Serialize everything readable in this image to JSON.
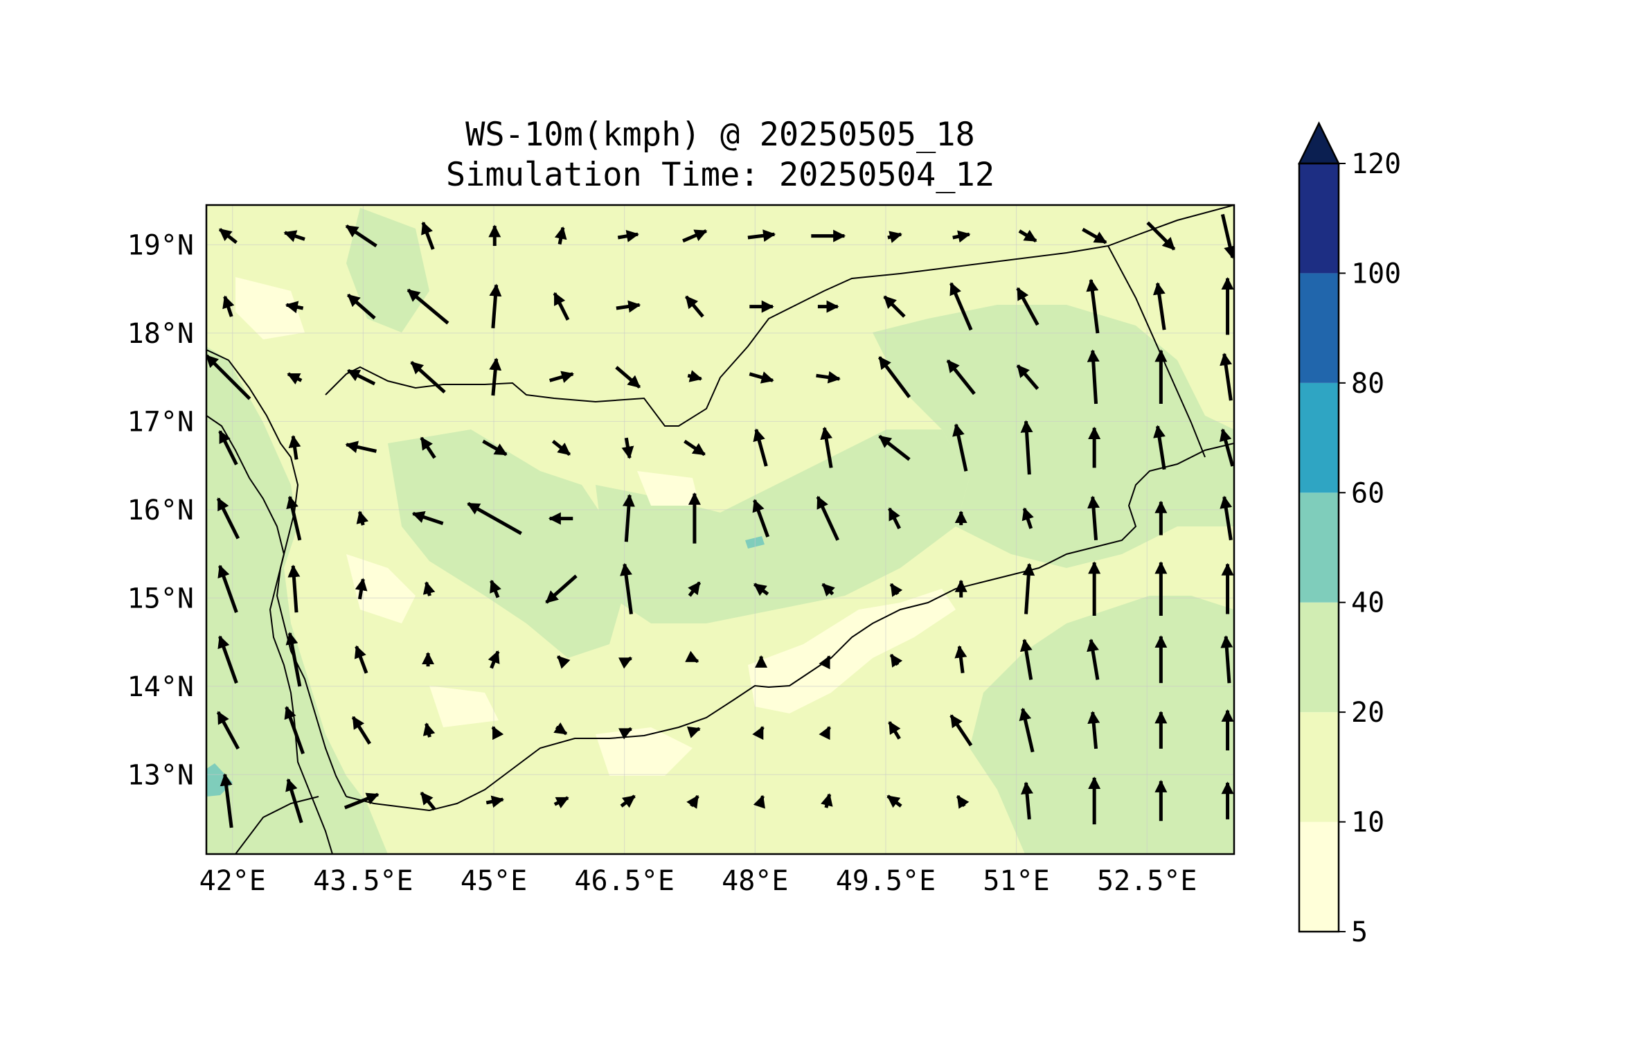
{
  "title": "WS-10m(kmph) @ 20250505_18",
  "subtitle": "Simulation Time: 20250504_12",
  "map": {
    "lon_range": [
      41.7,
      53.5
    ],
    "lat_range": [
      12.1,
      19.45
    ],
    "x_ticks": [
      "42°E",
      "43.5°E",
      "45°E",
      "46.5°E",
      "48°E",
      "49.5°E",
      "51°E",
      "52.5°E"
    ],
    "x_tick_values": [
      42,
      43.5,
      45,
      46.5,
      48,
      49.5,
      51,
      52.5
    ],
    "y_ticks": [
      "19°N",
      "18°N",
      "17°N",
      "16°N",
      "15°N",
      "14°N",
      "13°N"
    ],
    "y_tick_values": [
      19,
      18,
      17,
      16,
      15,
      14,
      13
    ],
    "gridlines": true,
    "variable": "10 m wind speed with wind direction vectors"
  },
  "colorbar": {
    "labels": [
      "5",
      "10",
      "20",
      "40",
      "60",
      "80",
      "100",
      "120"
    ],
    "colors": [
      "#ffffd9",
      "#eff9bd",
      "#d1edb3",
      "#7fcdbb",
      "#2fa5c3",
      "#2166ac",
      "#1d2e83",
      "#0b1f51"
    ],
    "extend": "max",
    "placement": "right"
  },
  "colors": {
    "background_field": "#eff9bd",
    "calm_patch": "#ffffd9",
    "stronger_patch": "#d1edb3",
    "max_patch": "#7fcdbb",
    "arrow": "#000000",
    "border": "#000000"
  },
  "wind_field_grid": {
    "lats": [
      19.1,
      18.3,
      17.5,
      16.7,
      15.9,
      15.1,
      14.3,
      13.5,
      12.7
    ],
    "rows": [
      [
        [
          -0.5,
          0.4
        ],
        [
          -0.6,
          0.2
        ],
        [
          -0.9,
          0.6
        ],
        [
          -0.3,
          0.8
        ],
        [
          0,
          0.6
        ],
        [
          0.1,
          0.5
        ],
        [
          0.6,
          0.1
        ],
        [
          0.7,
          0.3
        ],
        [
          0.8,
          0.1
        ],
        [
          1,
          0
        ],
        [
          0.4,
          0.1
        ],
        [
          0.5,
          0.1
        ],
        [
          0.5,
          -0.3
        ],
        [
          0.7,
          -0.4
        ],
        [
          0.8,
          -0.8
        ],
        [
          0.3,
          -1.3
        ]
      ],
      [
        [
          -0.2,
          0.6
        ],
        [
          -0.5,
          0.1
        ],
        [
          -0.8,
          0.7
        ],
        [
          -1.2,
          1
        ],
        [
          0.1,
          1.3
        ],
        [
          -0.4,
          0.8
        ],
        [
          0.7,
          0.1
        ],
        [
          -0.5,
          0.6
        ],
        [
          0.7,
          0
        ],
        [
          0.6,
          0
        ],
        [
          -0.6,
          0.6
        ],
        [
          -0.6,
          1.4
        ],
        [
          -0.6,
          1.1
        ],
        [
          -0.2,
          1.6
        ],
        [
          -0.2,
          1.4
        ],
        [
          0,
          1.7
        ]
      ],
      [
        [
          -1.3,
          1.3
        ],
        [
          -0.4,
          0.2
        ],
        [
          -0.8,
          0.4
        ],
        [
          -1,
          0.9
        ],
        [
          0.1,
          1.1
        ],
        [
          0.7,
          0.2
        ],
        [
          0.7,
          -0.6
        ],
        [
          0.4,
          -0.1
        ],
        [
          0.7,
          -0.2
        ],
        [
          0.7,
          -0.1
        ],
        [
          -0.9,
          1.2
        ],
        [
          -0.8,
          1
        ],
        [
          -0.6,
          0.7
        ],
        [
          -0.1,
          1.6
        ],
        [
          0,
          1.6
        ],
        [
          -0.2,
          1.4
        ]
      ],
      [
        [
          -0.5,
          1
        ],
        [
          -0.1,
          0.7
        ],
        [
          -0.9,
          0.2
        ],
        [
          -0.4,
          0.6
        ],
        [
          0.7,
          -0.4
        ],
        [
          0.5,
          -0.4
        ],
        [
          0.1,
          -0.6
        ],
        [
          0.6,
          -0.4
        ],
        [
          -0.3,
          1.1
        ],
        [
          -0.2,
          1.2
        ],
        [
          -0.9,
          0.7
        ],
        [
          -0.3,
          1.4
        ],
        [
          -0.1,
          1.6
        ],
        [
          0,
          1.2
        ],
        [
          -0.2,
          1.3
        ],
        [
          -0.3,
          1.1
        ]
      ],
      [
        [
          -0.6,
          1.2
        ],
        [
          -0.3,
          1.3
        ],
        [
          -0.1,
          0.4
        ],
        [
          -0.9,
          0.3
        ],
        [
          -1.6,
          0.9
        ],
        [
          -0.7,
          0
        ],
        [
          0.1,
          1.4
        ],
        [
          0,
          1.5
        ],
        [
          -0.4,
          1.1
        ],
        [
          -0.6,
          1.3
        ],
        [
          -0.3,
          0.6
        ],
        [
          0,
          0.4
        ],
        [
          -0.2,
          0.6
        ],
        [
          -0.1,
          1.3
        ],
        [
          0,
          1
        ],
        [
          -0.2,
          1.3
        ]
      ],
      [
        [
          -0.5,
          1.4
        ],
        [
          -0.1,
          1.4
        ],
        [
          0.1,
          0.6
        ],
        [
          -0.1,
          0.4
        ],
        [
          -0.2,
          0.5
        ],
        [
          -0.9,
          -0.8
        ],
        [
          -0.2,
          1.5
        ],
        [
          0.3,
          0.4
        ],
        [
          -0.4,
          0.3
        ],
        [
          -0.3,
          0.3
        ],
        [
          -0.2,
          0.3
        ],
        [
          0,
          0.5
        ],
        [
          0.1,
          1.5
        ],
        [
          0,
          1.6
        ],
        [
          0,
          1.6
        ],
        [
          0,
          1.5
        ]
      ],
      [
        [
          -0.5,
          1.4
        ],
        [
          -0.3,
          1.6
        ],
        [
          -0.3,
          0.8
        ],
        [
          0,
          0.4
        ],
        [
          0.2,
          0.5
        ],
        [
          -0.2,
          0.2
        ],
        [
          0.2,
          0.1
        ],
        [
          0.2,
          -0.1
        ],
        [
          0,
          0.2
        ],
        [
          0.1,
          0.2
        ],
        [
          -0.2,
          0.3
        ],
        [
          -0.1,
          0.8
        ],
        [
          -0.2,
          1.2
        ],
        [
          -0.2,
          1.2
        ],
        [
          0,
          1.4
        ],
        [
          -0.1,
          1.4
        ]
      ],
      [
        [
          -0.6,
          1.1
        ],
        [
          -0.5,
          1.4
        ],
        [
          -0.5,
          0.8
        ],
        [
          -0.1,
          0.4
        ],
        [
          -0.1,
          0.2
        ],
        [
          0.3,
          -0.2
        ],
        [
          0.2,
          0.1
        ],
        [
          0.3,
          0.1
        ],
        [
          0.1,
          0.2
        ],
        [
          0.1,
          0.2
        ],
        [
          -0.3,
          0.5
        ],
        [
          -0.6,
          0.9
        ],
        [
          -0.3,
          1.3
        ],
        [
          -0.1,
          1.1
        ],
        [
          0,
          1.1
        ],
        [
          0,
          1.2
        ]
      ],
      [
        [
          -0.2,
          1.6
        ],
        [
          -0.4,
          1.3
        ],
        [
          1,
          0.4
        ],
        [
          -0.4,
          0.5
        ],
        [
          0.5,
          0.1
        ],
        [
          0.4,
          0.2
        ],
        [
          0.4,
          0.3
        ],
        [
          0.2,
          0.3
        ],
        [
          0.1,
          0.3
        ],
        [
          0.1,
          0.4
        ],
        [
          -0.4,
          0.3
        ],
        [
          -0.2,
          0.3
        ],
        [
          -0.1,
          1.1
        ],
        [
          0,
          1.4
        ],
        [
          0,
          1.2
        ],
        [
          0,
          1.1
        ]
      ]
    ]
  }
}
